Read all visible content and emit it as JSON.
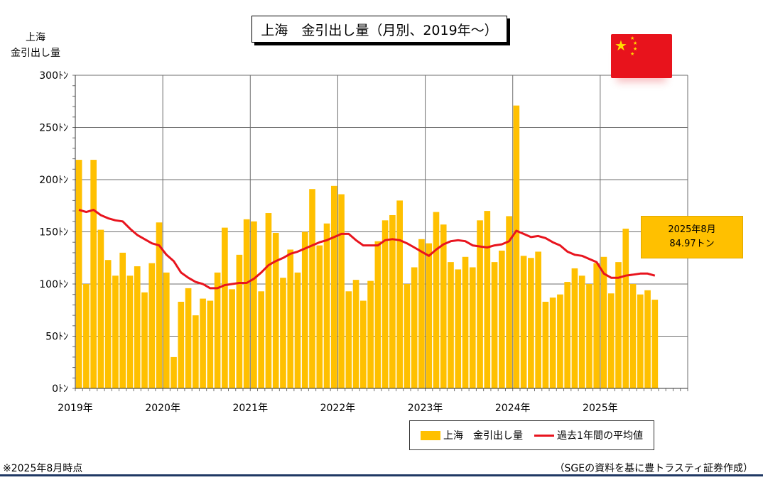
{
  "title": "上海　金引出し量（月別、2019年～）",
  "ylabel_line1": "上海",
  "ylabel_line2": "金引出し量",
  "callout": {
    "line1": "2025年8月",
    "line2": "84.97トン"
  },
  "legend": {
    "bar_label": "上海　金引出し量",
    "line_label": "過去1年間の平均値"
  },
  "footnote": "※2025年8月時点",
  "source": "（SGEの資料を基に豊トラスティ証券作成）",
  "flag_icon": "china-flag-icon",
  "colors": {
    "bar": "#ffc000",
    "line": "#e8141e",
    "grid": "#6e6e6e",
    "rule": "#1f3864",
    "flag": "#e8131c",
    "star": "#ffde00"
  },
  "chart_data": {
    "type": "bar",
    "ylim": [
      0,
      300
    ],
    "y_ticks": [
      {
        "value": 0,
        "label": "0ﾄﾝ"
      },
      {
        "value": 50,
        "label": "50ﾄﾝ"
      },
      {
        "value": 100,
        "label": "100ﾄﾝ"
      },
      {
        "value": 150,
        "label": "150ﾄﾝ"
      },
      {
        "value": 200,
        "label": "200ﾄﾝ"
      },
      {
        "value": 250,
        "label": "250ﾄﾝ"
      },
      {
        "value": 300,
        "label": "300ﾄﾝ"
      }
    ],
    "x_tick_labels": [
      "2019年",
      "2020年",
      "2021年",
      "2022年",
      "2023年",
      "2024年",
      "2025年"
    ],
    "start": "2019-01",
    "grid": true,
    "series": [
      {
        "name": "上海　金引出し量",
        "type": "bar",
        "values": [
          219,
          100,
          219,
          152,
          123,
          108,
          130,
          108,
          117,
          92,
          120,
          159,
          111,
          30,
          83,
          96,
          70,
          86,
          84,
          111,
          154,
          95,
          128,
          162,
          160,
          93,
          168,
          149,
          106,
          133,
          111,
          150,
          191,
          137,
          158,
          194,
          186,
          93,
          104,
          84,
          103,
          141,
          161,
          166,
          180,
          100,
          116,
          143,
          139,
          169,
          157,
          121,
          114,
          126,
          116,
          161,
          170,
          121,
          132,
          165,
          271,
          127,
          125,
          131,
          83,
          87,
          90,
          102,
          115,
          108,
          100,
          120,
          126,
          91,
          121,
          153,
          100,
          90,
          94,
          84.97
        ]
      },
      {
        "name": "過去1年間の平均値",
        "type": "line",
        "values": [
          171,
          169,
          171,
          166,
          163,
          161,
          160,
          153,
          147,
          143,
          139,
          137,
          128,
          122,
          111,
          106,
          102,
          100,
          96,
          96,
          99,
          100,
          101,
          101,
          105,
          111,
          118,
          122,
          125,
          129,
          131,
          134,
          137,
          140,
          142,
          145,
          148,
          148,
          142,
          137,
          137,
          137,
          142,
          143,
          142,
          139,
          135,
          131,
          127,
          133,
          138,
          141,
          142,
          141,
          137,
          136,
          135,
          137,
          138,
          141,
          151,
          148,
          145,
          146,
          144,
          140,
          137,
          131,
          128,
          127,
          124,
          121,
          110,
          106,
          106,
          108,
          109,
          110,
          110,
          108
        ]
      }
    ]
  }
}
